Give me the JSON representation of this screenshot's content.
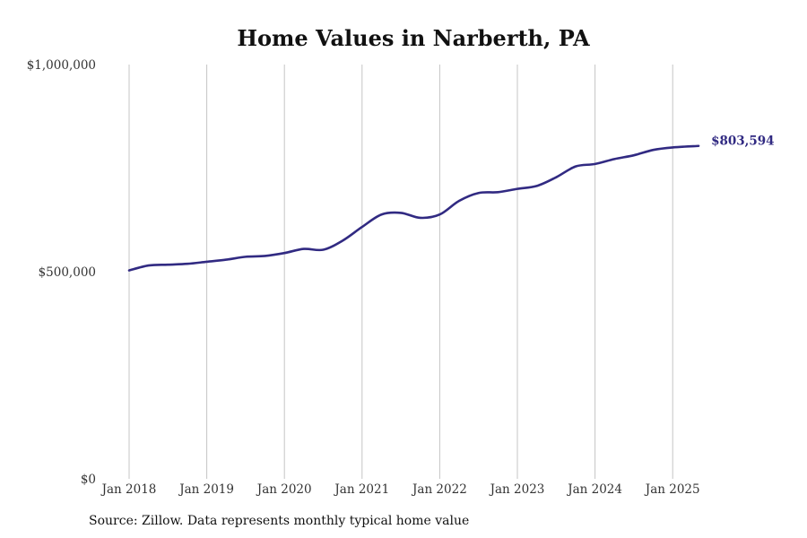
{
  "source_note": "Source: Zillow. Data represents monthly typical home value",
  "colors": {
    "line": "#312a82",
    "grid": "#c4c4c4",
    "text": "#333333"
  },
  "chart_data": {
    "type": "line",
    "title": "Home Values in Narberth, PA",
    "xlabel": "",
    "ylabel": "",
    "ylim": [
      0,
      1000000
    ],
    "yticks": [
      {
        "value": 0,
        "label": "$0"
      },
      {
        "value": 500000,
        "label": "$500,000"
      },
      {
        "value": 1000000,
        "label": "$1,000,000"
      }
    ],
    "xticks": [
      "Jan 2018",
      "Jan 2019",
      "Jan 2020",
      "Jan 2021",
      "Jan 2022",
      "Jan 2023",
      "Jan 2024",
      "Jan 2025"
    ],
    "grid": "vertical",
    "end_label": "$803,594",
    "series": [
      {
        "points": [
          [
            "2018-01",
            503000
          ],
          [
            "2018-04",
            515000
          ],
          [
            "2018-07",
            517000
          ],
          [
            "2018-10",
            519000
          ],
          [
            "2019-01",
            524000
          ],
          [
            "2019-04",
            529000
          ],
          [
            "2019-07",
            536000
          ],
          [
            "2019-10",
            538000
          ],
          [
            "2020-01",
            545000
          ],
          [
            "2020-04",
            555000
          ],
          [
            "2020-07",
            553000
          ],
          [
            "2020-10",
            575000
          ],
          [
            "2021-01",
            608000
          ],
          [
            "2021-04",
            638000
          ],
          [
            "2021-07",
            642000
          ],
          [
            "2021-10",
            630000
          ],
          [
            "2022-01",
            638000
          ],
          [
            "2022-04",
            671000
          ],
          [
            "2022-07",
            690000
          ],
          [
            "2022-10",
            692000
          ],
          [
            "2023-01",
            700000
          ],
          [
            "2023-04",
            707000
          ],
          [
            "2023-07",
            728000
          ],
          [
            "2023-10",
            754000
          ],
          [
            "2024-01",
            760000
          ],
          [
            "2024-04",
            772000
          ],
          [
            "2024-07",
            781000
          ],
          [
            "2024-10",
            794000
          ],
          [
            "2025-01",
            800000
          ],
          [
            "2025-05",
            803594
          ]
        ]
      }
    ]
  }
}
